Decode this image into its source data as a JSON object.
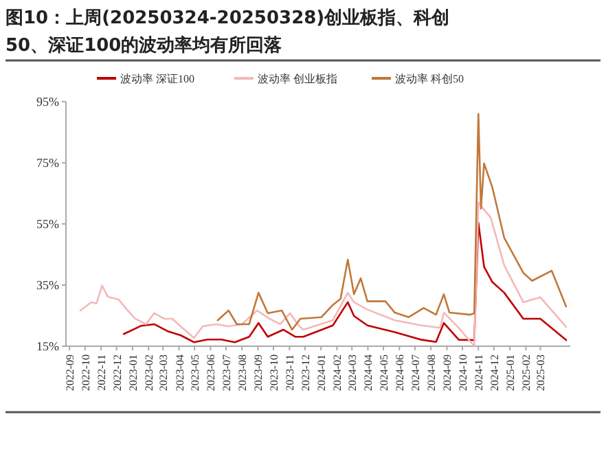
{
  "chart_data": {
    "type": "line",
    "title": "图10：上周(20250324-20250328)创业板指、科创50、深证100的波动率均有所回落",
    "legend": "top",
    "grid": false,
    "line_style": "solid",
    "xlim": [
      "2022-08-25",
      "2025-04-28"
    ],
    "xticks": [
      "2022-09",
      "2022-10",
      "2022-11",
      "2022-12",
      "2023-01",
      "2023-02",
      "2023-03",
      "2023-04",
      "2023-05",
      "2023-06",
      "2023-07",
      "2023-08",
      "2023-09",
      "2023-10",
      "2023-11",
      "2023-12",
      "2024-01",
      "2024-02",
      "2024-03",
      "2024-04",
      "2024-05",
      "2024-06",
      "2024-07",
      "2024-08",
      "2024-09",
      "2024-10",
      "2024-11",
      "2024-12",
      "2025-01",
      "2025-02",
      "2025-03"
    ],
    "ylim": [
      15,
      95
    ],
    "yticks": [
      {
        "value": 15,
        "label": "15%"
      },
      {
        "value": 35,
        "label": "35%"
      },
      {
        "value": 55,
        "label": "55%"
      },
      {
        "value": 75,
        "label": "75%"
      },
      {
        "value": 95,
        "label": "95%"
      }
    ],
    "series": [
      {
        "name": "波动率 深证100",
        "color": "#c00000",
        "x": [
          "2022-12-15",
          "2023-01-18",
          "2023-02-12",
          "2023-03-10",
          "2023-04-04",
          "2023-04-30",
          "2023-05-26",
          "2023-06-22",
          "2023-07-18",
          "2023-08-15",
          "2023-09-02",
          "2023-09-20",
          "2023-10-20",
          "2023-11-12",
          "2023-11-28",
          "2024-01-24",
          "2024-02-22",
          "2024-03-05",
          "2024-03-31",
          "2024-05-23",
          "2024-07-14",
          "2024-08-11",
          "2024-08-26",
          "2024-09-24",
          "2024-10-24",
          "2024-11-01",
          "2024-11-12",
          "2024-11-28",
          "2024-12-21",
          "2025-01-27",
          "2025-03-01",
          "2025-04-20"
        ],
        "values": [
          19,
          21.7,
          22.2,
          19.9,
          18.6,
          16.3,
          17.2,
          17.2,
          16.3,
          18.1,
          22.6,
          18.1,
          20.4,
          18.1,
          18.1,
          21.8,
          29.4,
          24.9,
          21.8,
          19.6,
          17.1,
          16.4,
          22.6,
          17.1,
          17,
          55.4,
          41,
          36,
          32.5,
          24,
          24,
          17
        ]
      },
      {
        "name": "波动率 创业板指",
        "color": "#f4b8b8",
        "x": [
          "2022-09-22",
          "2022-10-13",
          "2022-10-23",
          "2022-11-03",
          "2022-11-14",
          "2022-12-05",
          "2022-12-21",
          "2023-01-06",
          "2023-01-27",
          "2023-02-12",
          "2023-03-03",
          "2023-03-19",
          "2023-04-04",
          "2023-04-30",
          "2023-05-17",
          "2023-06-12",
          "2023-07-06",
          "2023-08-01",
          "2023-08-30",
          "2023-09-23",
          "2023-10-14",
          "2023-11-02",
          "2023-11-20",
          "2023-11-28",
          "2024-01-24",
          "2024-02-22",
          "2024-03-05",
          "2024-03-31",
          "2024-05-23",
          "2024-07-14",
          "2024-08-19",
          "2024-08-26",
          "2024-09-24",
          "2024-10-24",
          "2024-11-01",
          "2024-11-25",
          "2024-12-21",
          "2025-01-27",
          "2025-03-01",
          "2025-04-20"
        ],
        "values": [
          26.7,
          29.4,
          29,
          34.8,
          31.2,
          30.3,
          27,
          24,
          22.2,
          25.8,
          24,
          24,
          21.5,
          17.7,
          21.5,
          22.2,
          21.5,
          22.2,
          26.7,
          24,
          22.2,
          25.8,
          21.5,
          20.4,
          23.5,
          32.5,
          29.4,
          27,
          23.5,
          21.8,
          21,
          26,
          21,
          15,
          62,
          57,
          41.5,
          29.4,
          31,
          21.3
        ]
      },
      {
        "name": "波动率 科创50",
        "color": "#c0783c",
        "x": [
          "2023-06-15",
          "2023-07-06",
          "2023-07-22",
          "2023-08-15",
          "2023-09-02",
          "2023-09-20",
          "2023-10-17",
          "2023-11-06",
          "2023-11-22",
          "2024-01-02",
          "2024-01-24",
          "2024-02-08",
          "2024-02-22",
          "2024-03-05",
          "2024-03-18",
          "2024-03-31",
          "2024-05-05",
          "2024-05-23",
          "2024-06-19",
          "2024-07-18",
          "2024-08-11",
          "2024-08-26",
          "2024-09-06",
          "2024-10-16",
          "2024-10-24",
          "2024-11-01",
          "2024-11-06",
          "2024-11-12",
          "2024-11-28",
          "2024-12-21",
          "2025-01-27",
          "2025-02-13",
          "2025-03-23",
          "2025-04-20"
        ],
        "values": [
          23.5,
          26.7,
          22.2,
          22.2,
          32.5,
          25.8,
          26.7,
          20.4,
          24,
          24.5,
          28.5,
          30.5,
          43.3,
          32,
          37.2,
          29.7,
          29.7,
          26,
          24.5,
          27.5,
          25.3,
          32,
          26,
          25.3,
          25.8,
          91,
          60,
          74.8,
          67,
          50.5,
          39,
          36.4,
          39.7,
          28
        ]
      }
    ]
  }
}
